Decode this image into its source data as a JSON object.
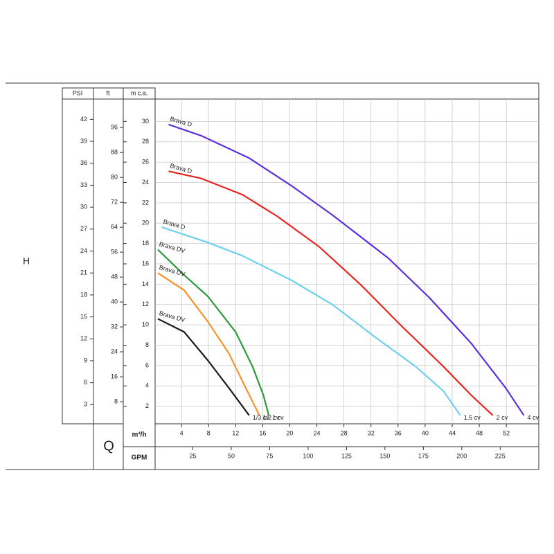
{
  "chart_data": {
    "type": "line",
    "y_title": "H",
    "x_title": "Q",
    "y_label": "m c.a.",
    "ylim": [
      0,
      32
    ],
    "yticks": [
      2,
      4,
      6,
      8,
      10,
      12,
      14,
      16,
      18,
      20,
      22,
      24,
      26,
      28,
      30
    ],
    "psi_axis": {
      "label": "PSI",
      "lim": [
        0,
        44.5
      ],
      "ticks": [
        3,
        6,
        9,
        12,
        15,
        18,
        21,
        24,
        27,
        30,
        33,
        36,
        39,
        42
      ]
    },
    "ft_axis": {
      "label": "ft",
      "lim": [
        0,
        104.5
      ],
      "ticks": [
        8,
        16,
        24,
        32,
        40,
        48,
        56,
        64,
        72,
        80,
        88,
        96
      ]
    },
    "x_label": "m³/h",
    "xlim": [
      0,
      57
    ],
    "xticks": [
      4,
      8,
      12,
      16,
      20,
      24,
      28,
      32,
      36,
      40,
      44,
      48,
      52
    ],
    "gpm_axis": {
      "label": "GPM",
      "lim": [
        0,
        251
      ],
      "ticks": [
        25,
        50,
        75,
        100,
        125,
        150,
        175,
        200,
        225
      ]
    },
    "grid": true,
    "series": [
      {
        "label": "Brava D",
        "power": "4 cv",
        "color": "#5b2ee0",
        "x": [
          2.1,
          6.9,
          14,
          20.2,
          26.3,
          34.5,
          40.6,
          46.8,
          51.9,
          54.6
        ],
        "values": [
          29.7,
          28.6,
          26.4,
          23.7,
          20.8,
          16.6,
          12.7,
          8.2,
          3.8,
          1.1
        ]
      },
      {
        "label": "Brava D",
        "power": "2 cv",
        "color": "#e8231e",
        "x": [
          2.1,
          6.9,
          13,
          18.1,
          24.3,
          30.4,
          36.5,
          42.7,
          46.8,
          50
        ],
        "values": [
          25.1,
          24.4,
          22.8,
          20.7,
          17.7,
          14.0,
          9.9,
          5.9,
          3.1,
          1.1
        ]
      },
      {
        "label": "Brava D",
        "power": "1.5 cv",
        "color": "#6fcff0",
        "x": [
          1.1,
          7.9,
          13,
          20.2,
          26.3,
          32.4,
          38.6,
          42.7,
          45.2
        ],
        "values": [
          19.6,
          18.1,
          16.8,
          14.4,
          12.0,
          8.9,
          5.9,
          3.5,
          1.1
        ]
      },
      {
        "label": "Brava DV",
        "power": "1 cv",
        "color": "#2a9a3a",
        "x": [
          0.5,
          4.4,
          7.9,
          12,
          14.5,
          16.1,
          16.9
        ],
        "values": [
          17.4,
          14.9,
          12.8,
          9.3,
          5.9,
          3.1,
          1.1
        ]
      },
      {
        "label": "Brava DV",
        "power": "1/2 cv",
        "color": "#f5922a",
        "x": [
          0.5,
          4.4,
          7.9,
          11,
          13.5,
          15.5
        ],
        "values": [
          15.1,
          13.4,
          10.3,
          7.2,
          3.8,
          1.1
        ]
      },
      {
        "label": "Brava DV",
        "power": "1/3 cv",
        "color": "#1a1a1a",
        "x": [
          0.5,
          4.4,
          7.9,
          11,
          14
        ],
        "values": [
          10.6,
          9.3,
          6.5,
          3.8,
          1.1
        ]
      }
    ]
  }
}
